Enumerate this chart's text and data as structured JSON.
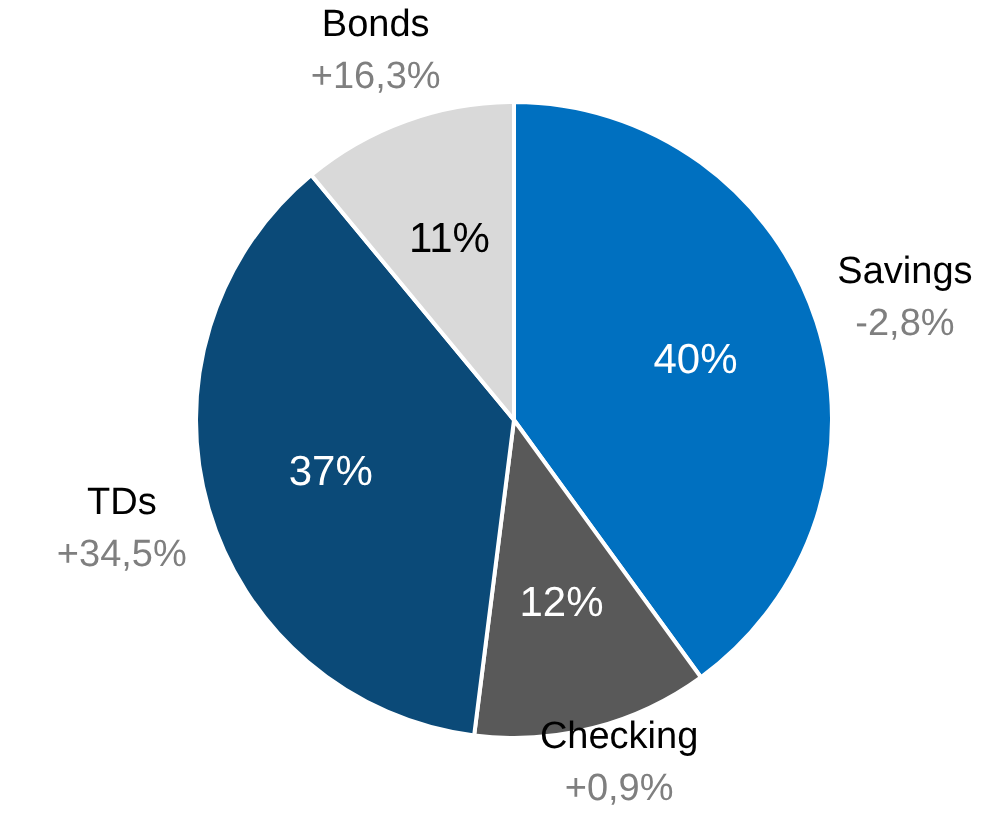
{
  "chart_data": {
    "type": "pie",
    "categories": [
      "Savings",
      "Checking",
      "TDs",
      "Bonds"
    ],
    "values": [
      40,
      12,
      37,
      11
    ],
    "colors": [
      "#0070c0",
      "#595959",
      "#0b4a78",
      "#d9d9d9"
    ],
    "value_labels": [
      "40%",
      "12%",
      "37%",
      "11%"
    ],
    "annotations": [
      "-2,8%",
      "+0,9%",
      "+34,5%",
      "+16,3%"
    ],
    "legend": false
  }
}
